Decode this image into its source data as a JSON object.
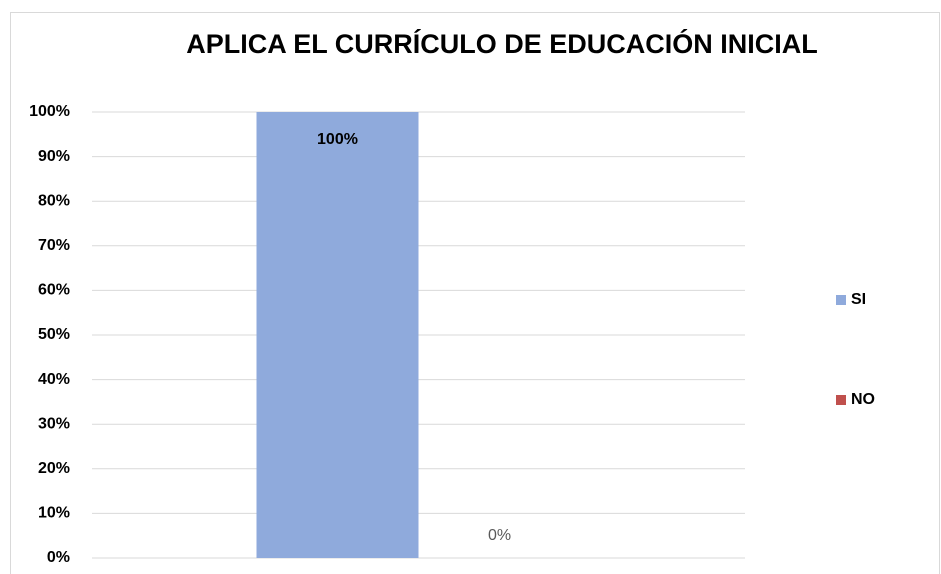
{
  "chart_data": {
    "type": "bar",
    "title": "APLICA EL CURRÍCULO DE EDUCACIÓN INICIAL",
    "categories": [
      null
    ],
    "series": [
      {
        "name": "SI",
        "color": "#8faadc",
        "values": [
          100
        ],
        "value_labels": [
          "100%"
        ]
      },
      {
        "name": "NO",
        "color": "#c0504d",
        "values": [
          0
        ],
        "value_labels": [
          "0%"
        ]
      }
    ],
    "ylim": [
      0,
      100
    ],
    "yticks": [
      {
        "value": 0,
        "label": "0%"
      },
      {
        "value": 10,
        "label": "10%"
      },
      {
        "value": 20,
        "label": "20%"
      },
      {
        "value": 30,
        "label": "30%"
      },
      {
        "value": 40,
        "label": "40%"
      },
      {
        "value": 50,
        "label": "50%"
      },
      {
        "value": 60,
        "label": "60%"
      },
      {
        "value": 70,
        "label": "70%"
      },
      {
        "value": 80,
        "label": "80%"
      },
      {
        "value": 90,
        "label": "90%"
      },
      {
        "value": 100,
        "label": "100%"
      }
    ],
    "grid": true,
    "legend": "right"
  }
}
